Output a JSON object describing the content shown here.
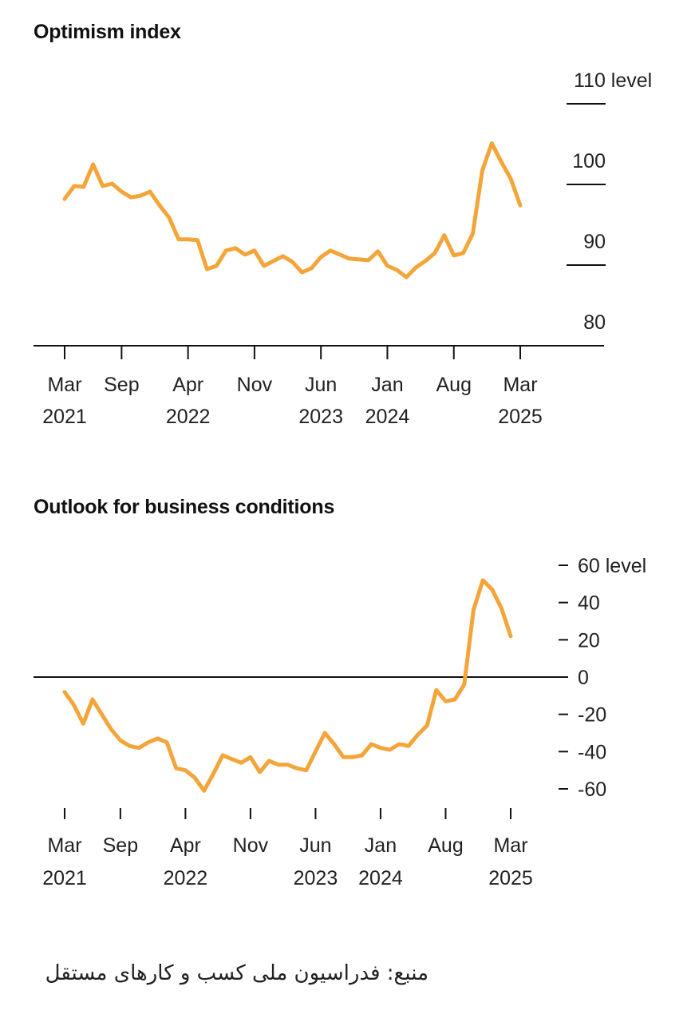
{
  "chart_data": [
    {
      "type": "line",
      "title": "Optimism index",
      "ylabel": "level",
      "ylim": [
        80,
        110
      ],
      "yticks": [
        80,
        90,
        100,
        110
      ],
      "ytick_labels": [
        "80",
        "90",
        "100",
        "110 level"
      ],
      "xtick_labels": [
        [
          "Mar",
          "2021"
        ],
        [
          "Sep",
          ""
        ],
        [
          "Apr",
          "2022"
        ],
        [
          "Nov",
          ""
        ],
        [
          "Jun",
          "2023"
        ],
        [
          "Jan",
          "2024"
        ],
        [
          "Aug",
          ""
        ],
        [
          "Mar",
          "2025"
        ]
      ],
      "x_start_month": "2021-03",
      "series": [
        {
          "name": "Optimism index",
          "color": "#f4a53a",
          "values": [
            98.2,
            99.8,
            99.7,
            102.5,
            99.8,
            100.1,
            99.1,
            98.4,
            98.6,
            99.1,
            97.4,
            95.9,
            93.2,
            93.2,
            93.1,
            89.5,
            89.9,
            91.8,
            92.1,
            91.3,
            91.8,
            89.9,
            90.5,
            91.1,
            90.4,
            89.1,
            89.6,
            91.0,
            91.8,
            91.3,
            90.8,
            90.7,
            90.6,
            91.7,
            89.9,
            89.4,
            88.5,
            89.7,
            90.5,
            91.5,
            93.7,
            91.2,
            91.5,
            93.9,
            101.7,
            105.1,
            102.8,
            100.7,
            97.4
          ]
        }
      ]
    },
    {
      "type": "line",
      "title": "Outlook for business conditions",
      "ylabel": "level",
      "ylim": [
        -60,
        60
      ],
      "yticks": [
        60,
        40,
        20,
        0,
        -20,
        -40,
        -60
      ],
      "ytick_labels": [
        "60 level",
        "40",
        "20",
        "0",
        "-20",
        "-40",
        "-60"
      ],
      "xtick_labels": [
        [
          "Mar",
          "2021"
        ],
        [
          "Sep",
          ""
        ],
        [
          "Apr",
          "2022"
        ],
        [
          "Nov",
          ""
        ],
        [
          "Jun",
          "2023"
        ],
        [
          "Jan",
          "2024"
        ],
        [
          "Aug",
          ""
        ],
        [
          "Mar",
          "2025"
        ]
      ],
      "x_start_month": "2021-03",
      "series": [
        {
          "name": "Outlook for business conditions",
          "color": "#f4a53a",
          "values": [
            -8,
            -15,
            -25,
            -12,
            -20,
            -28,
            -34,
            -37,
            -38,
            -35,
            -33,
            -35,
            -49,
            -50,
            -54,
            -61,
            -52,
            -42,
            -44,
            -46,
            -43,
            -51,
            -45,
            -47,
            -47,
            -49,
            -50,
            -40,
            -30,
            -36,
            -43,
            -43,
            -42,
            -36,
            -38,
            -39,
            -36,
            -37,
            -31,
            -26,
            -7,
            -13,
            -12,
            -4,
            36,
            52,
            47,
            37,
            22
          ]
        }
      ]
    }
  ],
  "source_text": "منبع: فدراسیون ملی کسب و کارهای مستقل"
}
